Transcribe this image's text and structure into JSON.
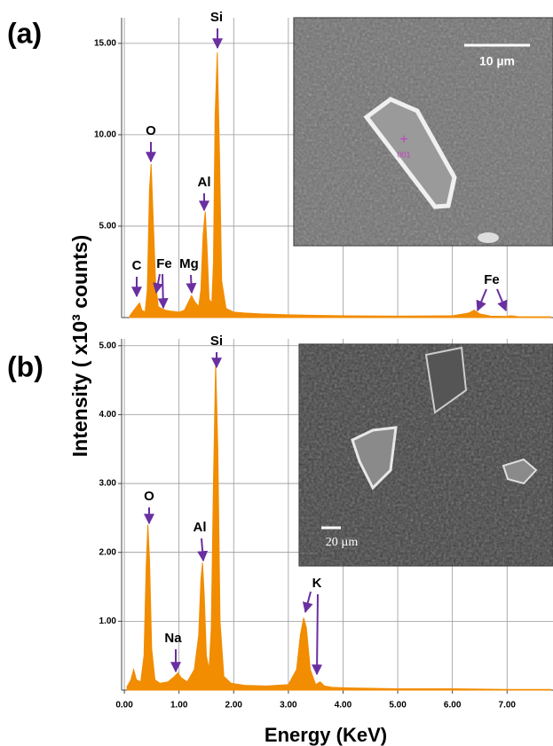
{
  "chart_data": [
    {
      "type": "area",
      "panel": "(a)",
      "color": "#f28c00",
      "x": [
        0.1,
        0.2,
        0.25,
        0.28,
        0.32,
        0.38,
        0.42,
        0.46,
        0.49,
        0.52,
        0.57,
        0.62,
        0.68,
        0.75,
        0.85,
        1.0,
        1.1,
        1.18,
        1.23,
        1.28,
        1.36,
        1.4,
        1.44,
        1.48,
        1.51,
        1.55,
        1.6,
        1.63,
        1.66,
        1.7,
        1.74,
        1.78,
        1.86,
        2.0,
        2.2,
        2.5,
        3.0,
        3.5,
        4.0,
        5.0,
        6.0,
        6.3,
        6.4,
        6.5,
        6.7,
        7.0,
        7.06,
        7.2,
        7.8
      ],
      "values": [
        0.1,
        0.5,
        0.7,
        0.8,
        0.4,
        0.3,
        1.5,
        7.0,
        8.4,
        6.0,
        2.0,
        0.6,
        0.5,
        0.4,
        0.35,
        0.3,
        0.4,
        0.9,
        1.2,
        0.9,
        0.6,
        1.5,
        4.5,
        5.8,
        4.0,
        1.0,
        0.8,
        3.0,
        11.0,
        14.5,
        9.0,
        2.0,
        0.5,
        0.3,
        0.25,
        0.2,
        0.15,
        0.12,
        0.1,
        0.08,
        0.1,
        0.25,
        0.4,
        0.2,
        0.08,
        0.06,
        0.1,
        0.05,
        0.04
      ],
      "xlim": [
        -0.05,
        7.84
      ],
      "ylim": [
        0,
        16.4
      ],
      "yticks": [
        {
          "value": 5,
          "label": "5.00"
        },
        {
          "value": 10,
          "label": "10.00"
        },
        {
          "value": 15,
          "label": "15.00"
        }
      ],
      "grid": true,
      "annotations": [
        "C",
        "Fe",
        "Mg",
        "O",
        "Al",
        "Si",
        "Fe"
      ],
      "inset": {
        "scale_label": "10 µm",
        "marker": "001"
      }
    },
    {
      "type": "area",
      "panel": "(b)",
      "color": "#f28c00",
      "x": [
        0.05,
        0.12,
        0.17,
        0.22,
        0.3,
        0.36,
        0.4,
        0.43,
        0.46,
        0.5,
        0.56,
        0.65,
        0.8,
        0.92,
        0.98,
        1.04,
        1.15,
        1.28,
        1.36,
        1.4,
        1.43,
        1.46,
        1.5,
        1.55,
        1.59,
        1.63,
        1.67,
        1.71,
        1.75,
        1.82,
        1.95,
        2.2,
        2.6,
        3.0,
        3.15,
        3.22,
        3.28,
        3.33,
        3.4,
        3.5,
        3.58,
        3.66,
        3.8,
        4.2,
        5.0,
        6.0,
        7.0,
        7.8
      ],
      "values": [
        0.05,
        0.15,
        0.3,
        0.15,
        0.12,
        0.5,
        1.8,
        2.4,
        1.9,
        0.6,
        0.15,
        0.1,
        0.12,
        0.2,
        0.25,
        0.18,
        0.12,
        0.3,
        0.8,
        1.6,
        1.85,
        1.4,
        0.5,
        0.3,
        0.9,
        3.0,
        4.75,
        3.5,
        1.0,
        0.2,
        0.1,
        0.07,
        0.06,
        0.08,
        0.3,
        0.8,
        1.05,
        0.9,
        0.3,
        0.08,
        0.12,
        0.06,
        0.04,
        0.03,
        0.02,
        0.02,
        0.01,
        0.01
      ],
      "xlim": [
        -0.05,
        7.84
      ],
      "ylim": [
        0,
        5.1
      ],
      "xticks": [
        {
          "value": 0,
          "label": "0.00"
        },
        {
          "value": 1,
          "label": "1.00"
        },
        {
          "value": 2,
          "label": "2.00"
        },
        {
          "value": 3,
          "label": "3.00"
        },
        {
          "value": 4,
          "label": "4.00"
        },
        {
          "value": 5,
          "label": "5.00"
        },
        {
          "value": 6,
          "label": "6.00"
        },
        {
          "value": 7,
          "label": "7.00"
        }
      ],
      "yticks": [
        {
          "value": 1,
          "label": "1.00"
        },
        {
          "value": 2,
          "label": "2.00"
        },
        {
          "value": 3,
          "label": "3.00"
        },
        {
          "value": 4,
          "label": "4.00"
        },
        {
          "value": 5,
          "label": "5.00"
        }
      ],
      "grid": true,
      "annotations": [
        "Si",
        "O",
        "Al",
        "Na",
        "K"
      ],
      "inset": {
        "scale_label": "20 µm"
      },
      "xlabel": "Energy (KeV)",
      "ylabel": "Intensity ( x10³ counts)"
    }
  ]
}
